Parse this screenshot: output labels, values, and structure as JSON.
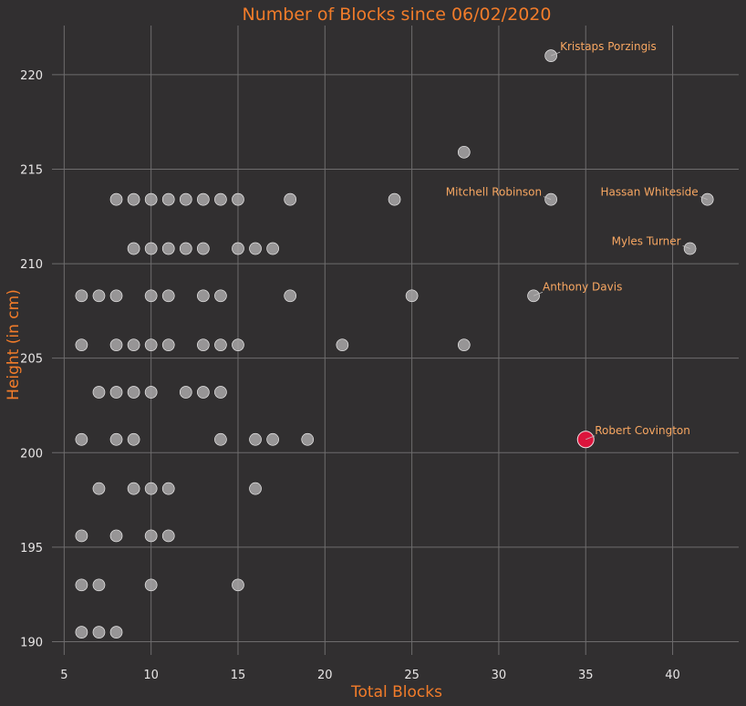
{
  "chart_data": {
    "type": "scatter",
    "title": "Number of Blocks since 06/02/2020",
    "xlabel": "Total Blocks",
    "ylabel": "Height (in cm)",
    "xlim": [
      4.3,
      43.8
    ],
    "ylim": [
      189.3,
      222.6
    ],
    "xticks": [
      5,
      10,
      15,
      20,
      25,
      30,
      35,
      40
    ],
    "yticks": [
      190,
      195,
      200,
      205,
      210,
      215,
      220
    ],
    "grid": true,
    "colors": {
      "background": "#312f30",
      "point": "#a9a7a8",
      "highlight": "#dc143c",
      "accent": "#f27c2a",
      "annotation": "#f8a762"
    },
    "points": [
      {
        "x": 33,
        "y": 221.0
      },
      {
        "x": 28,
        "y": 215.9
      },
      {
        "x": 8,
        "y": 213.4
      },
      {
        "x": 9,
        "y": 213.4
      },
      {
        "x": 10,
        "y": 213.4
      },
      {
        "x": 11,
        "y": 213.4
      },
      {
        "x": 12,
        "y": 213.4
      },
      {
        "x": 13,
        "y": 213.4
      },
      {
        "x": 14,
        "y": 213.4
      },
      {
        "x": 15,
        "y": 213.4
      },
      {
        "x": 18,
        "y": 213.4
      },
      {
        "x": 24,
        "y": 213.4
      },
      {
        "x": 33,
        "y": 213.4
      },
      {
        "x": 42,
        "y": 213.4
      },
      {
        "x": 9,
        "y": 210.8
      },
      {
        "x": 10,
        "y": 210.8
      },
      {
        "x": 11,
        "y": 210.8
      },
      {
        "x": 12,
        "y": 210.8
      },
      {
        "x": 13,
        "y": 210.8
      },
      {
        "x": 15,
        "y": 210.8
      },
      {
        "x": 16,
        "y": 210.8
      },
      {
        "x": 17,
        "y": 210.8
      },
      {
        "x": 41,
        "y": 210.8
      },
      {
        "x": 6,
        "y": 208.3
      },
      {
        "x": 7,
        "y": 208.3
      },
      {
        "x": 8,
        "y": 208.3
      },
      {
        "x": 10,
        "y": 208.3
      },
      {
        "x": 11,
        "y": 208.3
      },
      {
        "x": 13,
        "y": 208.3
      },
      {
        "x": 14,
        "y": 208.3
      },
      {
        "x": 18,
        "y": 208.3
      },
      {
        "x": 25,
        "y": 208.3
      },
      {
        "x": 32,
        "y": 208.3
      },
      {
        "x": 6,
        "y": 205.7
      },
      {
        "x": 8,
        "y": 205.7
      },
      {
        "x": 9,
        "y": 205.7
      },
      {
        "x": 10,
        "y": 205.7
      },
      {
        "x": 11,
        "y": 205.7
      },
      {
        "x": 13,
        "y": 205.7
      },
      {
        "x": 14,
        "y": 205.7
      },
      {
        "x": 15,
        "y": 205.7
      },
      {
        "x": 21,
        "y": 205.7
      },
      {
        "x": 28,
        "y": 205.7
      },
      {
        "x": 7,
        "y": 203.2
      },
      {
        "x": 8,
        "y": 203.2
      },
      {
        "x": 9,
        "y": 203.2
      },
      {
        "x": 10,
        "y": 203.2
      },
      {
        "x": 12,
        "y": 203.2
      },
      {
        "x": 13,
        "y": 203.2
      },
      {
        "x": 14,
        "y": 203.2
      },
      {
        "x": 6,
        "y": 200.7
      },
      {
        "x": 8,
        "y": 200.7
      },
      {
        "x": 9,
        "y": 200.7
      },
      {
        "x": 14,
        "y": 200.7
      },
      {
        "x": 16,
        "y": 200.7
      },
      {
        "x": 17,
        "y": 200.7
      },
      {
        "x": 19,
        "y": 200.7
      },
      {
        "x": 7,
        "y": 198.1
      },
      {
        "x": 9,
        "y": 198.1
      },
      {
        "x": 10,
        "y": 198.1
      },
      {
        "x": 11,
        "y": 198.1
      },
      {
        "x": 16,
        "y": 198.1
      },
      {
        "x": 6,
        "y": 195.6
      },
      {
        "x": 8,
        "y": 195.6
      },
      {
        "x": 10,
        "y": 195.6
      },
      {
        "x": 11,
        "y": 195.6
      },
      {
        "x": 6,
        "y": 193.0
      },
      {
        "x": 7,
        "y": 193.0
      },
      {
        "x": 10,
        "y": 193.0
      },
      {
        "x": 15,
        "y": 193.0
      },
      {
        "x": 6,
        "y": 190.5
      },
      {
        "x": 7,
        "y": 190.5
      },
      {
        "x": 8,
        "y": 190.5
      }
    ],
    "highlight": {
      "x": 35,
      "y": 200.7,
      "label": "Robert Covington"
    },
    "annotations": [
      {
        "label": "Kristaps Porzingis",
        "x": 33,
        "y": 221.0,
        "side": "right"
      },
      {
        "label": "Mitchell Robinson",
        "x": 33,
        "y": 213.4,
        "side": "left"
      },
      {
        "label": "Hassan Whiteside",
        "x": 42,
        "y": 213.4,
        "side": "left"
      },
      {
        "label": "Myles Turner",
        "x": 41,
        "y": 210.8,
        "side": "left"
      },
      {
        "label": "Anthony Davis",
        "x": 32,
        "y": 208.3,
        "side": "right"
      },
      {
        "label": "Robert Covington",
        "x": 35,
        "y": 200.7,
        "side": "right"
      }
    ]
  }
}
